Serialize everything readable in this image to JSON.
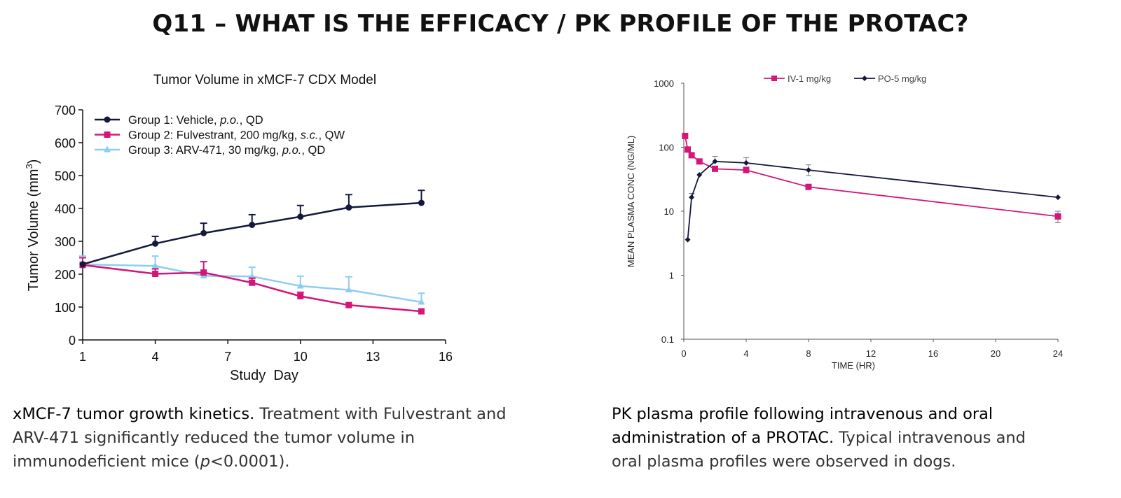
{
  "slide": {
    "title": "Q11 – WHAT IS THE EFFICACY / PK PROFILE OF THE PROTAC?"
  },
  "chart_data": [
    {
      "type": "line",
      "title": "Tumor Volume in xMCF-7 CDX Model",
      "xlabel": "Study  Day",
      "ylabel": "Tumor Volume (mm",
      "ylabel_sup": "3",
      "ylabel_end": ")",
      "xlim": [
        1,
        16
      ],
      "ylim": [
        0,
        700
      ],
      "xticks": [
        1,
        4,
        7,
        10,
        13,
        16
      ],
      "yticks": [
        0,
        100,
        200,
        300,
        400,
        500,
        600,
        700
      ],
      "legend_position": "top-left",
      "series": [
        {
          "name": "Group 1: Vehicle, p.o., QD",
          "legend": [
            {
              "t": "Group 1: Vehicle, "
            },
            {
              "t": "p.o.",
              "i": true
            },
            {
              "t": ", QD"
            }
          ],
          "color": "#14183d",
          "marker": "circle",
          "x": [
            1,
            4,
            6,
            8,
            10,
            12,
            15
          ],
          "y": [
            230,
            293,
            325,
            350,
            375,
            403,
            417
          ],
          "err": [
            0,
            22,
            30,
            31,
            34,
            39,
            38
          ]
        },
        {
          "name": "Group 2: Fulvestrant, 200 mg/kg, s.c., QW",
          "legend": [
            {
              "t": "Group 2: Fulvestrant, 200 mg/kg, "
            },
            {
              "t": "s.c.",
              "i": true
            },
            {
              "t": ", QW"
            }
          ],
          "color": "#d4157a",
          "marker": "square",
          "x": [
            1,
            4,
            6,
            8,
            10,
            12,
            15
          ],
          "y": [
            228,
            201,
            205,
            174,
            133,
            106,
            87
          ],
          "err": [
            22,
            15,
            33,
            14,
            12,
            0,
            0
          ]
        },
        {
          "name": "Group 3: ARV-471, 30 mg/kg, p.o., QD",
          "legend": [
            {
              "t": "Group 3: ARV-471, 30 mg/kg, "
            },
            {
              "t": "p.o.",
              "i": true
            },
            {
              "t": ", QD"
            }
          ],
          "color": "#8ecdf2",
          "marker": "triangle",
          "x": [
            1,
            4,
            6,
            8,
            10,
            12,
            15
          ],
          "y": [
            230,
            225,
            195,
            193,
            164,
            152,
            115
          ],
          "err": [
            25,
            30,
            0,
            28,
            30,
            40,
            27
          ]
        }
      ]
    },
    {
      "type": "line",
      "yscale": "log",
      "xlabel": "TIME (HR)",
      "ylabel": "MEAN PLASMA CONC (NG/ML)",
      "xlim": [
        0,
        24
      ],
      "ylim": [
        0.1,
        1000
      ],
      "xticks": [
        0,
        4,
        8,
        12,
        16,
        20,
        24
      ],
      "yticks": [
        0.1,
        1,
        10,
        100,
        1000
      ],
      "yticklabels": [
        "0.1",
        "1",
        "10",
        "100",
        "1000"
      ],
      "legend_position": "top-center",
      "series": [
        {
          "name": "IV-1 mg/kg",
          "color": "#d4157a",
          "marker": "square",
          "x": [
            0.083,
            0.25,
            0.5,
            1,
            2,
            4,
            8,
            24
          ],
          "y": [
            150,
            92,
            75,
            60,
            46,
            44,
            24,
            8.3
          ],
          "err_hi": [
            0,
            0,
            0,
            0,
            0,
            49,
            0,
            10
          ],
          "err_lo": [
            0,
            0,
            0,
            0,
            0,
            0,
            0,
            6.6
          ]
        },
        {
          "name": "PO-5 mg/kg",
          "color": "#14183d",
          "marker": "diamond",
          "x": [
            0.25,
            0.5,
            1,
            2,
            4,
            8,
            24
          ],
          "y": [
            3.6,
            16.5,
            37,
            60,
            57,
            44,
            16.5
          ],
          "err_hi": [
            0,
            19,
            0,
            72,
            69,
            53,
            0
          ],
          "err_lo": [
            0,
            0,
            0,
            0,
            0,
            36,
            0
          ]
        }
      ]
    }
  ],
  "captions": {
    "left": {
      "lead": "xMCF-7 tumor growth kinetics.",
      "rest1": " Treatment with Fulvestrant and",
      "line2": "ARV-471 significantly reduced the tumor volume in",
      "line3a": "immunodeficient mice (",
      "line3i": "p",
      "line3b": "<0.0001)."
    },
    "right": {
      "lead1": "PK plasma profile following intravenous and oral",
      "lead2": "administration of a PROTAC.",
      "rest2": " Typical intravenous and",
      "line3": "oral plasma profiles were observed in dogs."
    }
  }
}
